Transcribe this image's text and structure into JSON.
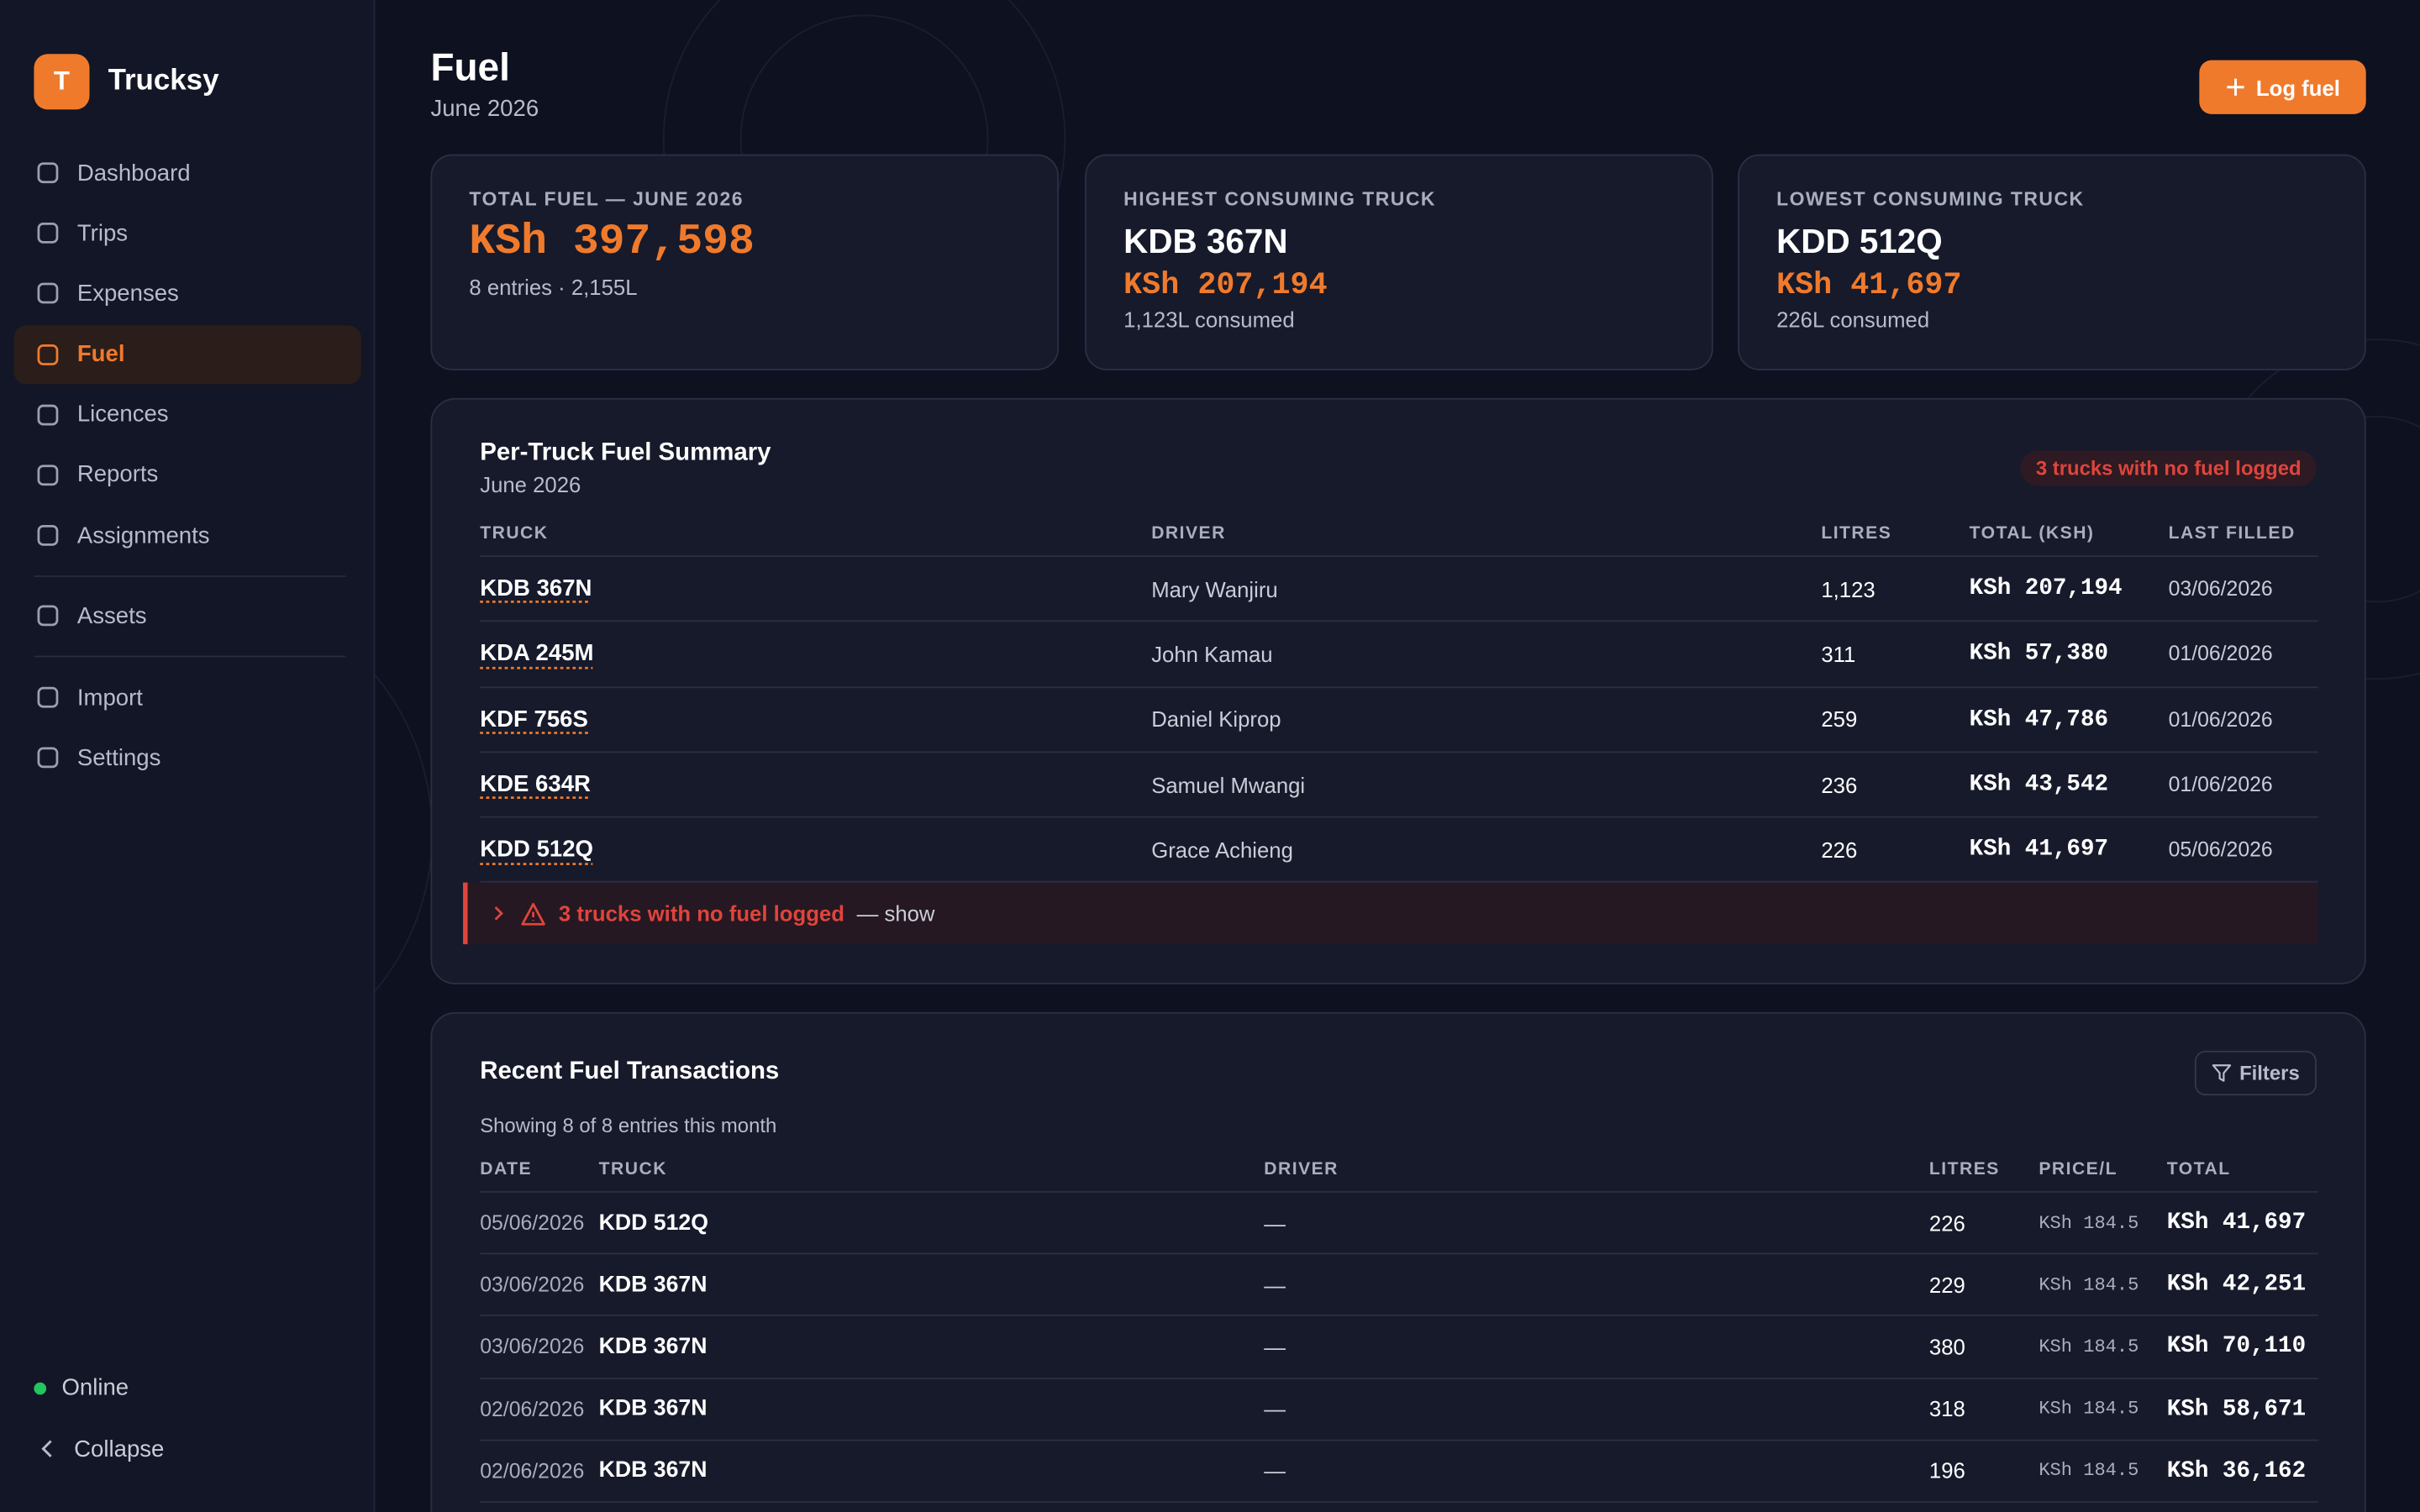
{
  "sidebar": {
    "brand_initial": "T",
    "brand": "Trucksy",
    "nav": [
      {
        "label": "Dashboard"
      },
      {
        "label": "Trips"
      },
      {
        "label": "Expenses"
      },
      {
        "label": "Fuel",
        "active": true
      },
      {
        "label": "Licences"
      },
      {
        "label": "Reports"
      },
      {
        "label": "Assignments"
      }
    ],
    "nav_assets": [
      {
        "label": "Assets"
      }
    ],
    "nav_tools": [
      {
        "label": "Import"
      },
      {
        "label": "Settings"
      }
    ],
    "status": "Online",
    "collapse": "Collapse"
  },
  "header": {
    "title": "Fuel",
    "subtitle": "June 2026",
    "button": "Log fuel"
  },
  "stats": [
    {
      "label": "TOTAL FUEL — JUNE 2026",
      "value": "KSh 397,598",
      "sub": "8 entries · 2,155L"
    },
    {
      "label": "HIGHEST CONSUMING TRUCK",
      "truck": "KDB 367N",
      "value": "KSh 207,194",
      "sub": "1,123L consumed"
    },
    {
      "label": "LOWEST CONSUMING TRUCK",
      "truck": "KDD 512Q",
      "value": "KSh 41,697",
      "sub": "226L consumed"
    }
  ],
  "summary": {
    "title": "Per-Truck Fuel Summary",
    "subtitle": "June 2026",
    "badge": "3 trucks with no fuel logged",
    "columns": [
      "TRUCK",
      "DRIVER",
      "LITRES",
      "TOTAL (KSH)",
      "LAST FILLED"
    ],
    "rows": [
      [
        "KDB 367N",
        "Mary Wanjiru",
        "1,123",
        "KSh 207,194",
        "03/06/2026"
      ],
      [
        "KDA 245M",
        "John Kamau",
        "311",
        "KSh 57,380",
        "01/06/2026"
      ],
      [
        "KDF 756S",
        "Daniel Kiprop",
        "259",
        "KSh 47,786",
        "01/06/2026"
      ],
      [
        "KDE 634R",
        "Samuel Mwangi",
        "236",
        "KSh 43,542",
        "01/06/2026"
      ],
      [
        "KDD 512Q",
        "Grace Achieng",
        "226",
        "KSh 41,697",
        "05/06/2026"
      ]
    ],
    "alert": "3 trucks with no fuel logged",
    "alert_action": "— show"
  },
  "transactions": {
    "title": "Recent Fuel Transactions",
    "filters": "Filters",
    "note": "Showing 8 of 8 entries this month",
    "columns": [
      "DATE",
      "TRUCK",
      "DRIVER",
      "LITRES",
      "PRICE/L",
      "TOTAL"
    ],
    "rows": [
      [
        "05/06/2026",
        "KDD 512Q",
        "—",
        "226",
        "KSh 184.5",
        "KSh 41,697"
      ],
      [
        "03/06/2026",
        "KDB 367N",
        "—",
        "229",
        "KSh 184.5",
        "KSh 42,251"
      ],
      [
        "03/06/2026",
        "KDB 367N",
        "—",
        "380",
        "KSh 184.5",
        "KSh 70,110"
      ],
      [
        "02/06/2026",
        "KDB 367N",
        "—",
        "318",
        "KSh 184.5",
        "KSh 58,671"
      ],
      [
        "02/06/2026",
        "KDB 367N",
        "—",
        "196",
        "KSh 184.5",
        "KSh 36,162"
      ]
    ]
  }
}
